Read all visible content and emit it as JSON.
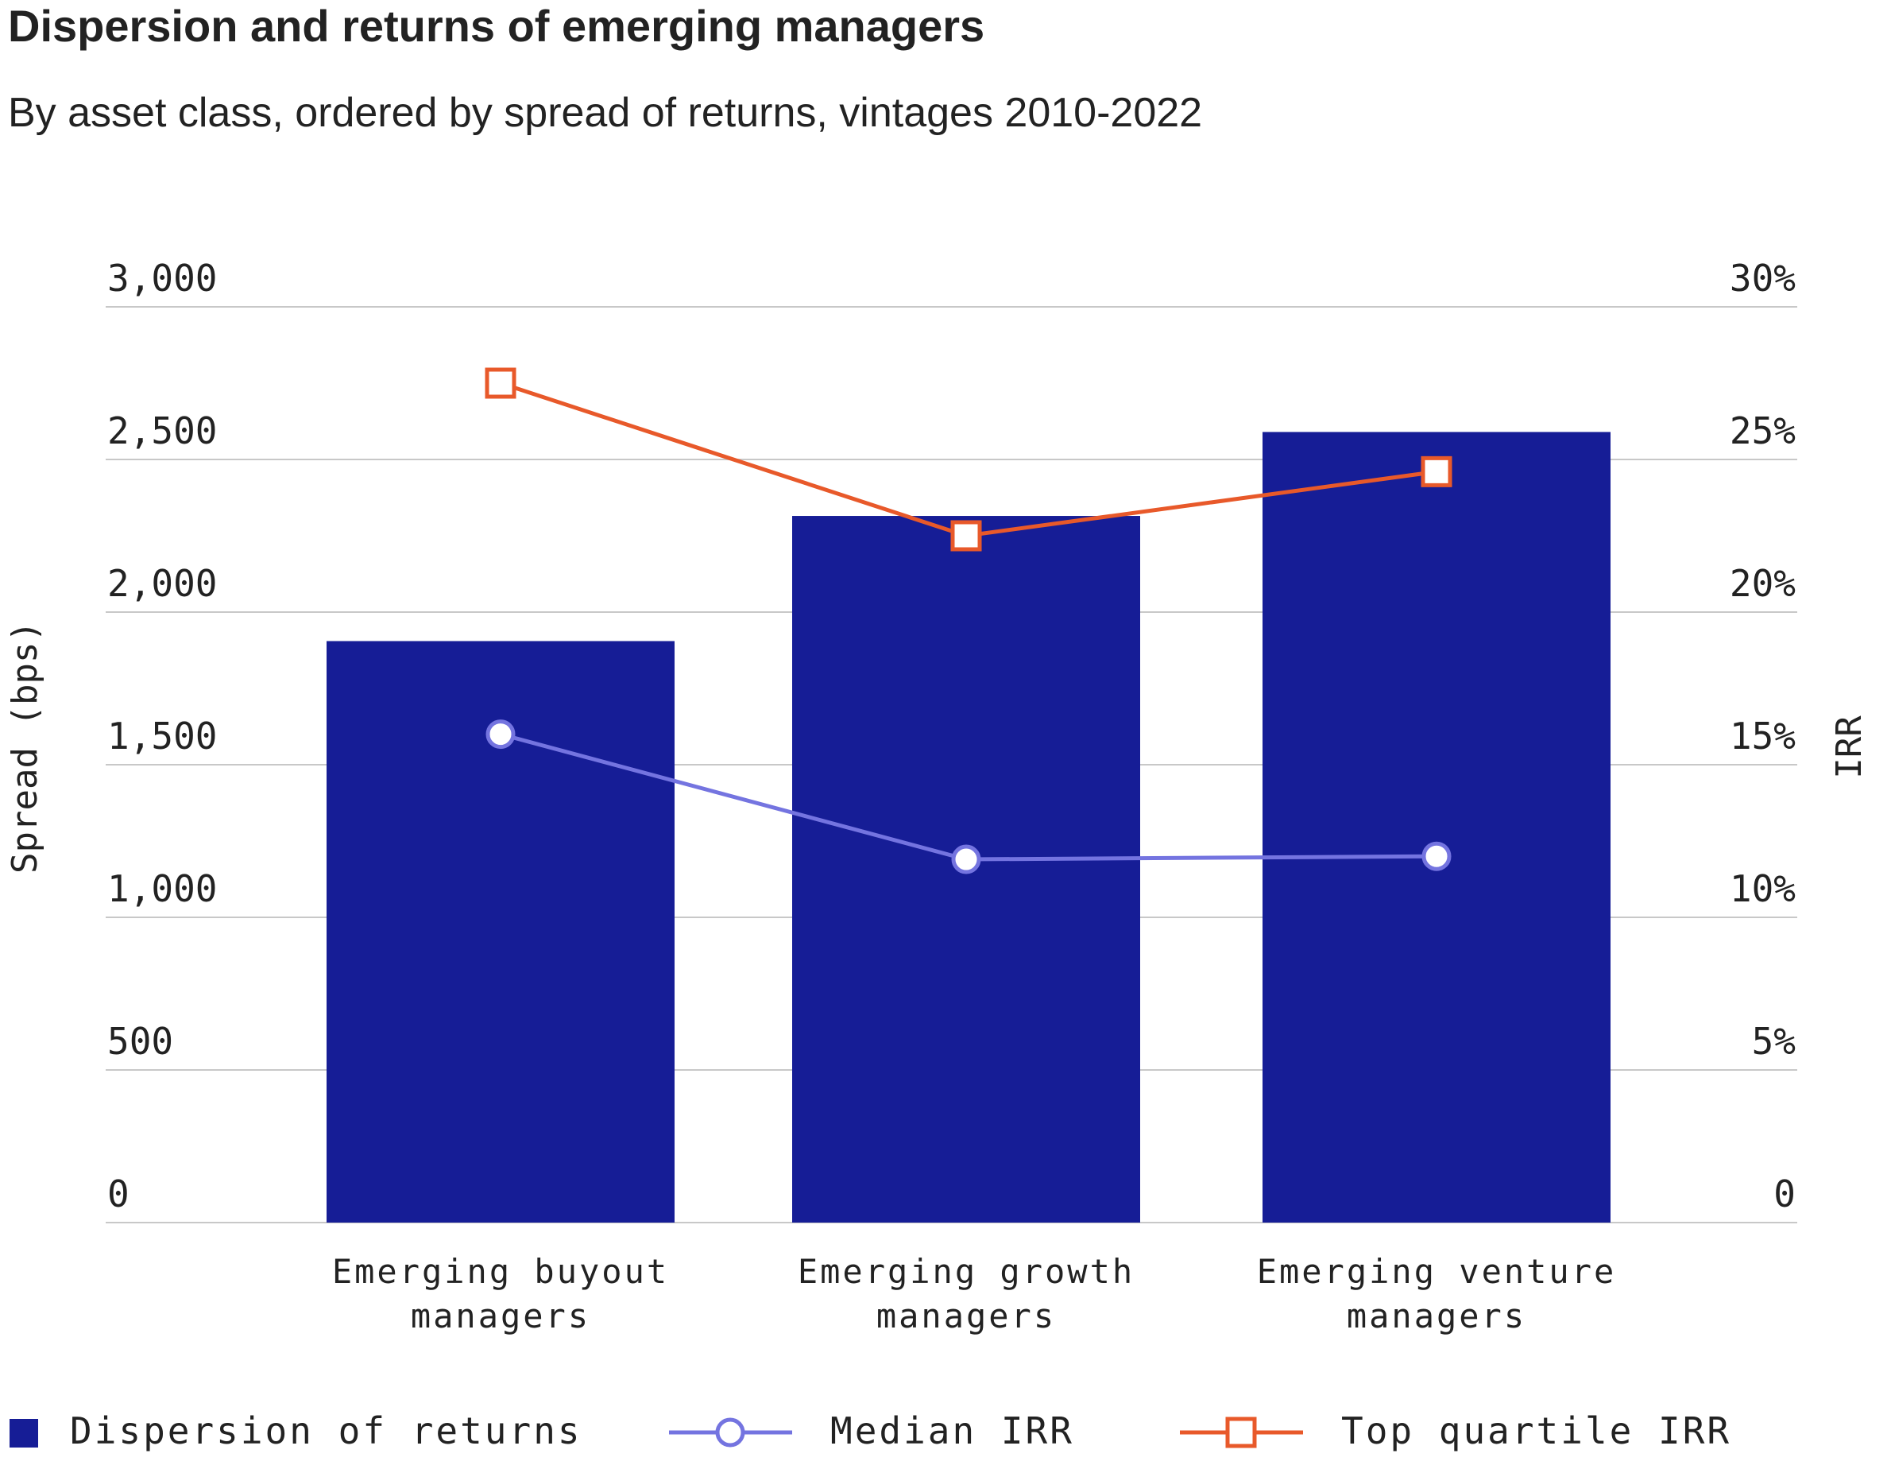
{
  "title": "Dispersion and returns of emerging managers",
  "subtitle": "By asset class, ordered by spread of returns, vintages 2010-2022",
  "colors": {
    "bar": "#161d96",
    "median": "#7474e0",
    "top_quartile": "#e8592a",
    "grid": "#c8c8c8",
    "text": "#222222"
  },
  "chart_data": {
    "type": "bar",
    "categories": [
      [
        "Emerging buyout",
        "managers"
      ],
      [
        "Emerging growth",
        "managers"
      ],
      [
        "Emerging venture",
        "managers"
      ]
    ],
    "series": [
      {
        "name": "Dispersion of returns",
        "axis": "left",
        "kind": "bar",
        "values": [
          1905,
          2315,
          2590
        ]
      },
      {
        "name": "Median IRR",
        "axis": "right",
        "kind": "line",
        "marker": "circle",
        "values": [
          16.0,
          11.9,
          12.0
        ]
      },
      {
        "name": "Top quartile IRR",
        "axis": "right",
        "kind": "line",
        "marker": "square",
        "values": [
          27.5,
          22.5,
          24.6
        ]
      }
    ],
    "ylabel": "Spread (bps)",
    "y2label": "IRR",
    "ylim": [
      0,
      3000
    ],
    "y2lim": [
      0,
      30
    ],
    "yticks": [
      "0",
      "500",
      "1,000",
      "1,500",
      "2,000",
      "2,500",
      "3,000"
    ],
    "y2ticks": [
      "0",
      "5%",
      "10%",
      "15%",
      "20%",
      "25%",
      "30%"
    ],
    "grid": true,
    "legend_position": "bottom"
  }
}
